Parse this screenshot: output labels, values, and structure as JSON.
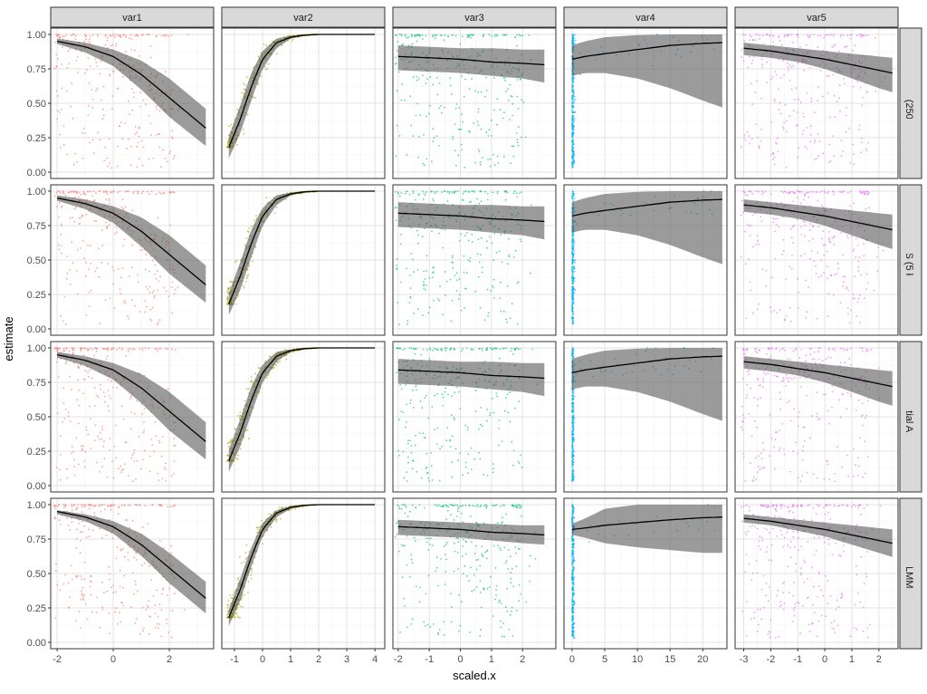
{
  "chart_data": {
    "type": "scatter",
    "xlabel": "scaled.x",
    "ylabel": "estimate",
    "ylim": [
      0,
      1
    ],
    "y_ticks": [
      "0.00",
      "0.25",
      "0.50",
      "0.75",
      "1.00"
    ],
    "y_tick_values": [
      0,
      0.25,
      0.5,
      0.75,
      1
    ],
    "grid": true,
    "facet_columns": [
      {
        "label": "var1",
        "color": "#F8766D",
        "xlim": [
          -2.23,
          3.58
        ],
        "x_ticks": [
          "-2",
          "0",
          "2"
        ],
        "x_tick_values": [
          -2,
          0,
          2
        ]
      },
      {
        "label": "var2",
        "color": "#A3A500",
        "xlim": [
          -1.45,
          4.35
        ],
        "x_ticks": [
          "-1",
          "0",
          "1",
          "2",
          "3",
          "4"
        ],
        "x_tick_values": [
          -1,
          0,
          1,
          2,
          3,
          4
        ]
      },
      {
        "label": "var3",
        "color": "#00BF7D",
        "xlim": [
          -2.17,
          3.07
        ],
        "x_ticks": [
          "-2",
          "-1",
          "0",
          "1",
          "2"
        ],
        "x_tick_values": [
          -2,
          -1,
          0,
          1,
          2
        ]
      },
      {
        "label": "var4",
        "color": "#00B0F6",
        "xlim": [
          -1.24,
          23.7
        ],
        "x_ticks": [
          "0",
          "5",
          "10",
          "15",
          "20"
        ],
        "x_tick_values": [
          0,
          5,
          10,
          15,
          20
        ]
      },
      {
        "label": "var5",
        "color": "#E76BF3",
        "xlim": [
          -3.32,
          2.71
        ],
        "x_ticks": [
          "-3",
          "-2",
          "-1",
          "0",
          "1",
          "2"
        ],
        "x_tick_values": [
          -3,
          -2,
          -1,
          0,
          1,
          2
        ]
      }
    ],
    "facet_rows": [
      {
        "label": "BRMS (250 km)"
      },
      {
        "label": "BRMS (5 km)"
      },
      {
        "label": "BRMS with Spatial Autocorrelation"
      },
      {
        "label": "GLMM"
      }
    ],
    "fits": {
      "default": [
        {
          "x": [
            -2,
            -1,
            0,
            1,
            2,
            3.3
          ],
          "fit": [
            0.95,
            0.91,
            0.84,
            0.71,
            0.54,
            0.32
          ],
          "lower": [
            0.93,
            0.87,
            0.77,
            0.6,
            0.4,
            0.19
          ],
          "upper": [
            0.97,
            0.94,
            0.89,
            0.81,
            0.68,
            0.46
          ]
        },
        {
          "x": [
            -1.2,
            -0.8,
            -0.4,
            0,
            0.5,
            1,
            1.5,
            2,
            4
          ],
          "fit": [
            0.18,
            0.38,
            0.62,
            0.82,
            0.94,
            0.98,
            0.995,
            1,
            1
          ],
          "lower": [
            0.1,
            0.28,
            0.52,
            0.75,
            0.9,
            0.97,
            0.99,
            1,
            1
          ],
          "upper": [
            0.26,
            0.48,
            0.72,
            0.88,
            0.97,
            0.99,
            1,
            1,
            1
          ]
        },
        {
          "x": [
            -2,
            -1,
            0,
            1,
            2,
            2.7
          ],
          "fit": [
            0.84,
            0.83,
            0.82,
            0.8,
            0.79,
            0.78
          ],
          "lower": [
            0.74,
            0.73,
            0.72,
            0.7,
            0.68,
            0.65
          ],
          "upper": [
            0.92,
            0.91,
            0.9,
            0.9,
            0.89,
            0.89
          ]
        },
        {
          "x": [
            0,
            2,
            5,
            10,
            15,
            20,
            23
          ],
          "fit": [
            0.82,
            0.84,
            0.86,
            0.89,
            0.92,
            0.935,
            0.94
          ],
          "lower": [
            0.7,
            0.72,
            0.72,
            0.68,
            0.61,
            0.52,
            0.47
          ],
          "upper": [
            0.92,
            0.95,
            0.98,
            0.995,
            1,
            1,
            1
          ]
        },
        {
          "x": [
            -3,
            -2,
            -1,
            0,
            1,
            2,
            2.5
          ],
          "fit": [
            0.9,
            0.88,
            0.85,
            0.82,
            0.78,
            0.74,
            0.72
          ],
          "lower": [
            0.85,
            0.83,
            0.8,
            0.75,
            0.68,
            0.61,
            0.58
          ],
          "upper": [
            0.94,
            0.92,
            0.9,
            0.88,
            0.86,
            0.84,
            0.83
          ]
        }
      ],
      "GLMM": [
        {
          "x": [
            -2,
            -1,
            0,
            1,
            2,
            3.3
          ],
          "fit": [
            0.95,
            0.91,
            0.84,
            0.71,
            0.54,
            0.32
          ],
          "lower": [
            0.93,
            0.88,
            0.79,
            0.63,
            0.43,
            0.21
          ],
          "upper": [
            0.96,
            0.93,
            0.88,
            0.79,
            0.65,
            0.44
          ]
        },
        {
          "x": [
            -1.2,
            -0.8,
            -0.4,
            0,
            0.5,
            1,
            1.5,
            2,
            4
          ],
          "fit": [
            0.18,
            0.38,
            0.62,
            0.82,
            0.94,
            0.98,
            0.995,
            1,
            1
          ],
          "lower": [
            0.12,
            0.3,
            0.55,
            0.77,
            0.91,
            0.97,
            0.99,
            1,
            1
          ],
          "upper": [
            0.24,
            0.46,
            0.69,
            0.87,
            0.96,
            0.99,
            1,
            1,
            1
          ]
        },
        {
          "x": [
            -2,
            -1,
            0,
            1,
            2,
            2.7
          ],
          "fit": [
            0.84,
            0.83,
            0.82,
            0.8,
            0.79,
            0.78
          ],
          "lower": [
            0.78,
            0.77,
            0.76,
            0.74,
            0.72,
            0.71
          ],
          "upper": [
            0.89,
            0.88,
            0.87,
            0.86,
            0.85,
            0.85
          ]
        },
        {
          "x": [
            0,
            2,
            5,
            10,
            15,
            20,
            23
          ],
          "fit": [
            0.82,
            0.83,
            0.85,
            0.87,
            0.89,
            0.905,
            0.91
          ],
          "lower": [
            0.78,
            0.76,
            0.72,
            0.69,
            0.67,
            0.65,
            0.65
          ],
          "upper": [
            0.86,
            0.9,
            0.97,
            1,
            1,
            1,
            1
          ]
        },
        {
          "x": [
            -3,
            -2,
            -1,
            0,
            1,
            2,
            2.5
          ],
          "fit": [
            0.9,
            0.88,
            0.85,
            0.82,
            0.78,
            0.74,
            0.72
          ],
          "lower": [
            0.87,
            0.85,
            0.81,
            0.77,
            0.71,
            0.65,
            0.62
          ],
          "upper": [
            0.93,
            0.91,
            0.89,
            0.87,
            0.85,
            0.83,
            0.82
          ]
        }
      ]
    },
    "ribbon_color": "#595959",
    "strip_fill": "#D9D9D9"
  }
}
